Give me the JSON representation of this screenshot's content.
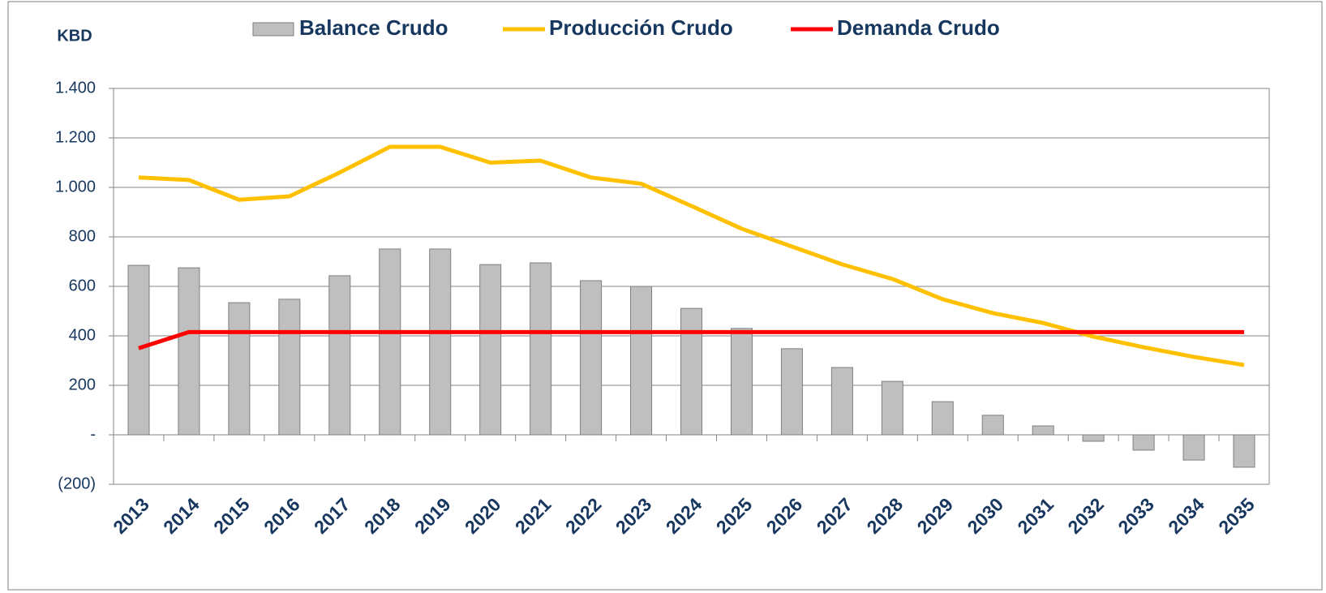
{
  "chart_data": {
    "type": "combo",
    "y_label": "KBD",
    "categories": [
      "2013",
      "2014",
      "2015",
      "2016",
      "2017",
      "2018",
      "2019",
      "2020",
      "2021",
      "2022",
      "2023",
      "2024",
      "2025",
      "2026",
      "2027",
      "2028",
      "2029",
      "2030",
      "2031",
      "2032",
      "2033",
      "2034",
      "2035"
    ],
    "series": [
      {
        "name": "Balance Crudo",
        "type": "bar",
        "color": "#bfbfbf",
        "values": [
          685,
          675,
          534,
          548,
          643,
          751,
          751,
          688,
          695,
          623,
          600,
          511,
          430,
          348,
          272,
          216,
          134,
          79,
          36,
          -26,
          -62,
          -102,
          -131
        ]
      },
      {
        "name": "Producción Crudo",
        "type": "line",
        "color": "#ffc000",
        "values": [
          1040,
          1030,
          950,
          964,
          1060,
          1164,
          1164,
          1100,
          1108,
          1040,
          1015,
          925,
          833,
          761,
          689,
          630,
          548,
          492,
          452,
          397,
          354,
          315,
          282
        ]
      },
      {
        "name": "Demanda Crudo",
        "type": "line",
        "color": "#ff0000",
        "values": [
          350,
          415,
          415,
          415,
          415,
          415,
          415,
          415,
          415,
          415,
          415,
          415,
          415,
          415,
          415,
          415,
          415,
          415,
          415,
          415,
          415,
          415,
          415
        ]
      }
    ],
    "ylim": [
      -200,
      1400
    ],
    "yticks": [
      {
        "value": -200,
        "label": "(200)"
      },
      {
        "value": 0,
        "label": "-"
      },
      200,
      400,
      600,
      800,
      {
        "value": 1000,
        "label": "1.000"
      },
      {
        "value": 1200,
        "label": "1.200"
      },
      {
        "value": 1400,
        "label": "1.400"
      }
    ],
    "grid": true,
    "legend": "top"
  }
}
